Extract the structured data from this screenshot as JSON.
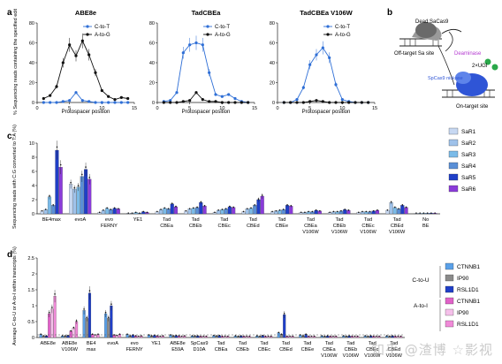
{
  "panel_letters": [
    "a",
    "b",
    "c",
    "d"
  ],
  "colors": {
    "ctot": "#2f6fd6",
    "atog": "#111111",
    "grid": "#d8d8d8",
    "sa": [
      "#c7d8f2",
      "#9fc2ea",
      "#7bbbe8",
      "#5a8fd6",
      "#1f3fc8",
      "#8a3bd9"
    ],
    "ctou": [
      "#5aa0e8",
      "#8a8a8a",
      "#1f3fc8"
    ],
    "atoi": [
      "#e062c8",
      "#f5c0ea",
      "#f08ad8"
    ]
  },
  "panel_a": {
    "ylabel": "% Sequencing reads containing the specified edit",
    "xlabel": "Protospacer position",
    "legend": [
      "C-to-T",
      "A-to-G"
    ]
  },
  "panel_b": {
    "labels": [
      "Dead SaCas9",
      "Off-target Sa site",
      "Deaminase",
      "2×UGI",
      "SpCas9 nickase",
      "On-target site"
    ]
  },
  "panel_c": {
    "ylabel": "Sequencing reads with C:G converted to T:A (%)"
  },
  "panel_d": {
    "ylabel": "Average C-to-U or A-to-I within transcripts (%)",
    "group_labels": [
      "C-to-U",
      "A-to-I"
    ]
  },
  "chart_data": [
    {
      "type": "line",
      "title": "ABE8e",
      "x": [
        1,
        2,
        3,
        4,
        5,
        6,
        7,
        8,
        9,
        10,
        11,
        12,
        13,
        14
      ],
      "xlim": [
        0,
        15
      ],
      "ylim": [
        0,
        80
      ],
      "yticks": [
        0,
        20,
        40,
        60,
        80
      ],
      "xticks": [
        0,
        5,
        10,
        15
      ],
      "series": [
        {
          "name": "C-to-T",
          "values": [
            0,
            0,
            0,
            1,
            2,
            10,
            2,
            1,
            0,
            0,
            0,
            0,
            0,
            0
          ]
        },
        {
          "name": "A-to-G",
          "values": [
            4,
            7,
            16,
            40,
            58,
            47,
            62,
            48,
            30,
            12,
            6,
            3,
            5,
            4
          ]
        }
      ]
    },
    {
      "type": "line",
      "title": "TadCBEa",
      "x": [
        1,
        2,
        3,
        4,
        5,
        6,
        7,
        8,
        9,
        10,
        11,
        12,
        13,
        14
      ],
      "xlim": [
        0,
        15
      ],
      "ylim": [
        0,
        80
      ],
      "yticks": [
        0,
        20,
        40,
        60,
        80
      ],
      "xticks": [
        0,
        5,
        10,
        15
      ],
      "series": [
        {
          "name": "C-to-T",
          "values": [
            1,
            2,
            10,
            50,
            58,
            60,
            58,
            30,
            8,
            6,
            8,
            4,
            1,
            0
          ]
        },
        {
          "name": "A-to-G",
          "values": [
            0,
            0,
            0,
            1,
            2,
            10,
            3,
            1,
            1,
            0,
            0,
            0,
            0,
            0
          ]
        }
      ]
    },
    {
      "type": "line",
      "title": "TadCBEa V106W",
      "x": [
        1,
        2,
        3,
        4,
        5,
        6,
        7,
        8,
        9,
        10,
        11,
        12,
        13,
        14
      ],
      "xlim": [
        0,
        15
      ],
      "ylim": [
        0,
        80
      ],
      "yticks": [
        0,
        20,
        40,
        60,
        80
      ],
      "xticks": [
        0,
        5,
        10,
        15
      ],
      "series": [
        {
          "name": "C-to-T",
          "values": [
            0,
            0,
            3,
            15,
            38,
            48,
            55,
            45,
            18,
            3,
            1,
            0,
            0,
            0
          ]
        },
        {
          "name": "A-to-G",
          "values": [
            0,
            0,
            0,
            0,
            1,
            2,
            1,
            0,
            0,
            0,
            0,
            0,
            0,
            0
          ]
        }
      ]
    },
    {
      "type": "bar",
      "ylim": [
        0,
        10
      ],
      "yticks": [
        0,
        2,
        4,
        6,
        8,
        10
      ],
      "categories": [
        "BE4max",
        "evoA",
        "evo FERNY",
        "YE1",
        "Tad CBEa",
        "Tad CBEb",
        "Tad CBEc",
        "Tad CBEd",
        "Tad CBEe",
        "Tad CBEa V106W",
        "Tad CBEb V106W",
        "Tad CBEc V106W",
        "Tad CBEd V106W",
        "No BE"
      ],
      "series": [
        {
          "name": "SaR1",
          "values": [
            0.4,
            4.2,
            0.2,
            0.1,
            0.3,
            0.4,
            0.2,
            0.3,
            0.3,
            0.2,
            0.2,
            0.2,
            0.5,
            0.1
          ]
        },
        {
          "name": "SaR2",
          "values": [
            0.6,
            3.5,
            0.5,
            0.1,
            0.6,
            0.7,
            0.5,
            0.7,
            0.4,
            0.2,
            0.3,
            0.3,
            1.6,
            0.1
          ]
        },
        {
          "name": "SaR3",
          "values": [
            2.4,
            3.8,
            0.8,
            0.2,
            0.8,
            0.8,
            0.6,
            0.8,
            0.5,
            0.3,
            0.3,
            0.3,
            0.9,
            0.1
          ]
        },
        {
          "name": "SaR4",
          "values": [
            1.2,
            5.3,
            0.6,
            0.1,
            0.7,
            0.9,
            0.7,
            1.2,
            0.6,
            0.3,
            0.4,
            0.3,
            0.7,
            0.1
          ]
        },
        {
          "name": "SaR5",
          "values": [
            9.0,
            6.3,
            0.8,
            0.3,
            1.4,
            1.6,
            1.0,
            2.0,
            1.2,
            0.5,
            0.6,
            0.4,
            1.2,
            0.1
          ]
        },
        {
          "name": "SaR6",
          "values": [
            6.6,
            4.9,
            0.7,
            0.2,
            1.0,
            1.1,
            0.9,
            2.5,
            1.1,
            0.4,
            0.5,
            0.5,
            0.9,
            0.1
          ]
        }
      ]
    },
    {
      "type": "bar",
      "ylim": [
        0,
        2.5
      ],
      "yticks": [
        0,
        0.5,
        1.0,
        1.5,
        2.0,
        2.5
      ],
      "categories": [
        "ABE8e",
        "ABE8e V106W",
        "BE4 max",
        "evoA",
        "evo FERNY",
        "YE1",
        "ABE8e E59A",
        "SpCas9 D10A",
        "Tad CBEa",
        "Tad CBEb",
        "Tad CBEc",
        "Tad CBEd",
        "Tad CBEe",
        "Tad CBEa V106W",
        "Tad CBEb V106W",
        "Tad CBEc V106W",
        "Tad CBEd V106W"
      ],
      "series": [
        {
          "name": "CTNNB1",
          "group": "C-to-U",
          "values": [
            0.1,
            0.05,
            0.85,
            0.75,
            0.1,
            0.08,
            0.08,
            0.05,
            0.06,
            0.05,
            0.05,
            0.15,
            0.08,
            0.05,
            0.05,
            0.05,
            0.05
          ]
        },
        {
          "name": "IP90",
          "group": "C-to-U",
          "values": [
            0.05,
            0.05,
            0.6,
            0.6,
            0.05,
            0.05,
            0.05,
            0.05,
            0.05,
            0.04,
            0.04,
            0.1,
            0.05,
            0.04,
            0.04,
            0.04,
            0.04
          ]
        },
        {
          "name": "RSL1D1",
          "group": "C-to-U",
          "values": [
            0.05,
            0.06,
            1.4,
            1.0,
            0.08,
            0.07,
            0.06,
            0.05,
            0.06,
            0.05,
            0.06,
            0.72,
            0.1,
            0.05,
            0.05,
            0.05,
            0.05
          ]
        },
        {
          "name": "CTNNB1",
          "group": "A-to-I",
          "values": [
            0.75,
            0.2,
            0.1,
            0.08,
            0.05,
            0.05,
            0.05,
            0.04,
            0.04,
            0.04,
            0.04,
            0.04,
            0.04,
            0.04,
            0.04,
            0.04,
            0.04
          ]
        },
        {
          "name": "IP90",
          "group": "A-to-I",
          "values": [
            0.9,
            0.3,
            0.08,
            0.06,
            0.04,
            0.04,
            0.04,
            0.04,
            0.04,
            0.04,
            0.04,
            0.04,
            0.04,
            0.04,
            0.04,
            0.04,
            0.04
          ]
        },
        {
          "name": "RSL1D1",
          "group": "A-to-I",
          "values": [
            1.3,
            0.5,
            0.1,
            0.1,
            0.05,
            0.05,
            0.05,
            0.04,
            0.04,
            0.04,
            0.04,
            0.04,
            0.04,
            0.04,
            0.04,
            0.04,
            0.04
          ]
        }
      ]
    }
  ],
  "watermark": "知乎 @渣博 ☆影视"
}
